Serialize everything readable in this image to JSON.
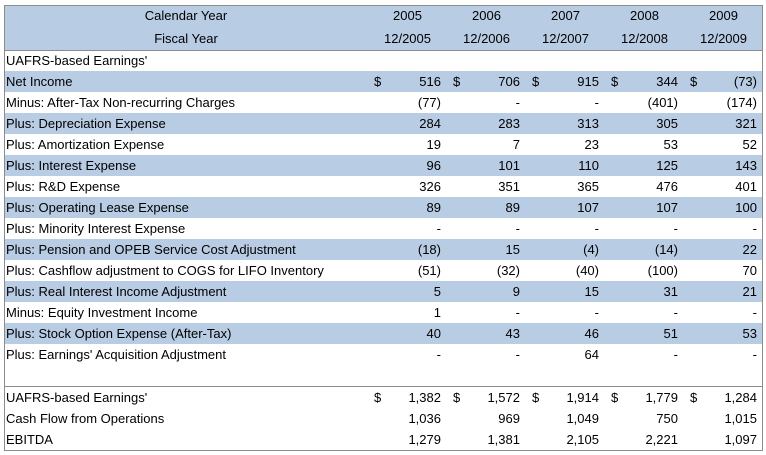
{
  "header": {
    "calendar_label": "Calendar Year",
    "fiscal_label": "Fiscal Year",
    "years": [
      "2005",
      "2006",
      "2007",
      "2008",
      "2009"
    ],
    "fiscal": [
      "12/2005",
      "12/2006",
      "12/2007",
      "12/2008",
      "12/2009"
    ]
  },
  "section_title": "UAFRS-based Earnings'",
  "rows": [
    {
      "label": "Net Income",
      "currency": "$",
      "values": [
        "516",
        "706",
        "915",
        "344",
        "(73)"
      ]
    },
    {
      "label": "Minus: After-Tax Non-recurring Charges",
      "values": [
        "(77)",
        "-",
        "-",
        "(401)",
        "(174)"
      ]
    },
    {
      "label": "Plus: Depreciation Expense",
      "values": [
        "284",
        "283",
        "313",
        "305",
        "321"
      ]
    },
    {
      "label": "Plus: Amortization Expense",
      "values": [
        "19",
        "7",
        "23",
        "53",
        "52"
      ]
    },
    {
      "label": "Plus: Interest Expense",
      "values": [
        "96",
        "101",
        "110",
        "125",
        "143"
      ]
    },
    {
      "label": "Plus: R&D Expense",
      "values": [
        "326",
        "351",
        "365",
        "476",
        "401"
      ]
    },
    {
      "label": "Plus: Operating Lease Expense",
      "values": [
        "89",
        "89",
        "107",
        "107",
        "100"
      ]
    },
    {
      "label": "Plus: Minority Interest Expense",
      "values": [
        "-",
        "-",
        "-",
        "-",
        "-"
      ]
    },
    {
      "label": "Plus: Pension and OPEB Service Cost Adjustment",
      "values": [
        "(18)",
        "15",
        "(4)",
        "(14)",
        "22"
      ]
    },
    {
      "label": "Plus: Cashflow adjustment to COGS for LIFO Inventory",
      "values": [
        "(51)",
        "(32)",
        "(40)",
        "(100)",
        "70"
      ]
    },
    {
      "label": "Plus: Real Interest Income Adjustment",
      "values": [
        "5",
        "9",
        "15",
        "31",
        "21"
      ]
    },
    {
      "label": "Minus: Equity Investment Income",
      "values": [
        "1",
        "-",
        "-",
        "-",
        "-"
      ]
    },
    {
      "label": "Plus: Stock Option Expense (After-Tax)",
      "values": [
        "40",
        "43",
        "46",
        "51",
        "53"
      ]
    },
    {
      "label": "Plus: Earnings' Acquisition Adjustment",
      "values": [
        "-",
        "-",
        "64",
        "-",
        "-"
      ]
    }
  ],
  "summary": [
    {
      "label": "UAFRS-based Earnings'",
      "currency": "$",
      "values": [
        "1,382",
        "1,572",
        "1,914",
        "1,779",
        "1,284"
      ]
    },
    {
      "label": "Cash Flow from Operations",
      "values": [
        "1,036",
        "969",
        "1,049",
        "750",
        "1,015"
      ]
    },
    {
      "label": "EBITDA",
      "values": [
        "1,279",
        "1,381",
        "2,105",
        "2,221",
        "1,097"
      ]
    }
  ]
}
